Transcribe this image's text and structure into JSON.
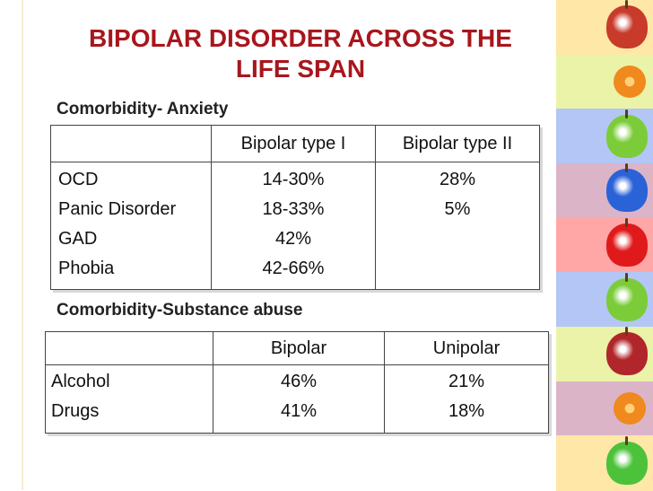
{
  "slide": {
    "title_line1": "BIPOLAR DISORDER ACROSS THE",
    "title_line2": "LIFE SPAN"
  },
  "anxiety": {
    "heading": "Comorbidity- Anxiety",
    "headers": [
      "",
      "Bipolar type I",
      "Bipolar type II"
    ],
    "conditions": [
      "OCD",
      "Panic Disorder",
      "GAD",
      "Phobia"
    ],
    "type1": [
      "14-30%",
      "18-33%",
      "42%",
      "42-66%"
    ],
    "type2": [
      "28%",
      "5%"
    ]
  },
  "substance": {
    "heading": "Comorbidity-Substance abuse",
    "headers": [
      "",
      "Bipolar",
      "Unipolar"
    ],
    "substances": [
      "Alcohol",
      "Drugs"
    ],
    "bipolar": [
      "46%",
      "41%"
    ],
    "unipolar": [
      "21%",
      "18%"
    ]
  },
  "decor": {
    "strip_colors": [
      "#ffe7a8",
      "#eaf3a8",
      "#b3c6f6",
      "#dbb4c8",
      "#ffa6a6",
      "#b3c6f6",
      "#eaf3a8",
      "#dbb4c8",
      "#ffe7a8"
    ],
    "fruit_icons": [
      "apple-icon",
      "orange-slice-icon",
      "apple-icon",
      "apple-icon",
      "apple-icon",
      "apple-icon",
      "apple-icon",
      "orange-slice-icon",
      "apple-icon"
    ],
    "fruit_colors": [
      "#c83a2a",
      "#f0891e",
      "#7ccc3a",
      "#2a62d8",
      "#e01a1a",
      "#7ccc3a",
      "#b0262a",
      "#f0891e",
      "#4cc23a"
    ]
  }
}
